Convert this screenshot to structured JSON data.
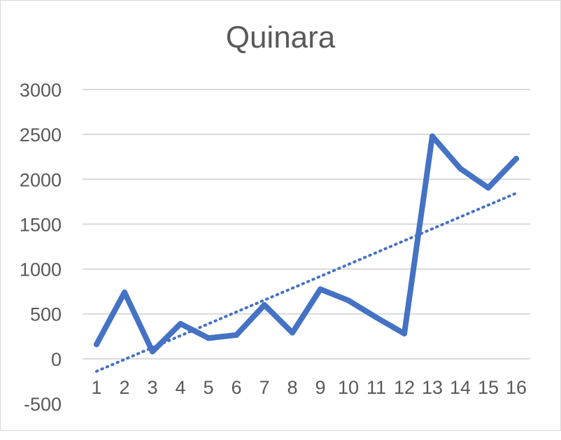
{
  "chart_data": {
    "type": "line",
    "title": "Quinara",
    "xlabel": "",
    "ylabel": "",
    "categories": [
      "1",
      "2",
      "3",
      "4",
      "5",
      "6",
      "7",
      "8",
      "9",
      "10",
      "11",
      "12",
      "13",
      "14",
      "15",
      "16"
    ],
    "series": [
      {
        "values": [
          160,
          740,
          80,
          390,
          230,
          265,
          600,
          290,
          775,
          650,
          460,
          280,
          2480,
          2120,
          1905,
          2230
        ],
        "color": "#4472c4"
      }
    ],
    "trendline": {
      "type": "linear",
      "style": "dotted",
      "color": "#4472c4",
      "start": -140,
      "end": 1845
    },
    "y_ticks": [
      "-500",
      "0",
      "500",
      "1000",
      "1500",
      "2000",
      "2500",
      "3000"
    ],
    "ylim": [
      -500,
      3000
    ],
    "grid": true,
    "legend": "none"
  }
}
